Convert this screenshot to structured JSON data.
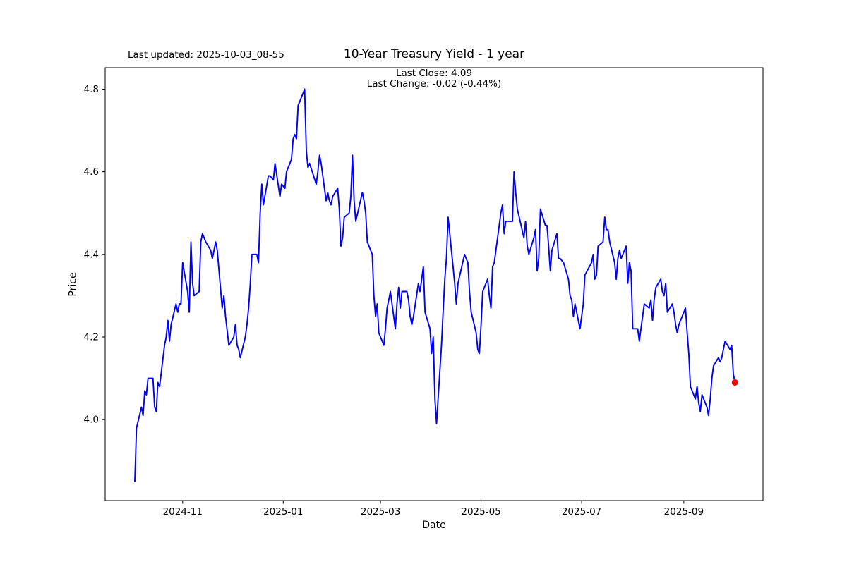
{
  "figure": {
    "last_updated": "Last updated: 2025-10-03_08-55",
    "title": "10-Year Treasury Yield - 1 year",
    "annotation": {
      "line1": "Last Close: 4.09",
      "line2": "Last Change: -0.02 (-0.44%)"
    }
  },
  "chart_data": {
    "type": "line",
    "title": "10-Year Treasury Yield - 1 year",
    "xlabel": "Date",
    "ylabel": "Price",
    "grid": false,
    "legend": "none",
    "line_color": "#0000ff",
    "marker_color": "#ff0000",
    "xlim": [
      "2024-09-15",
      "2025-10-19"
    ],
    "ylim": [
      3.804,
      4.852
    ],
    "x_ticks": [
      {
        "label": "2024-11",
        "date": "2024-11-01"
      },
      {
        "label": "2025-01",
        "date": "2025-01-01"
      },
      {
        "label": "2025-03",
        "date": "2025-03-01"
      },
      {
        "label": "2025-05",
        "date": "2025-05-01"
      },
      {
        "label": "2025-07",
        "date": "2025-07-01"
      },
      {
        "label": "2025-09",
        "date": "2025-09-01"
      }
    ],
    "y_ticks": [
      {
        "label": "4.0",
        "value": 4.0
      },
      {
        "label": "4.2",
        "value": 4.2
      },
      {
        "label": "4.4",
        "value": 4.4
      },
      {
        "label": "4.6",
        "value": 4.6
      },
      {
        "label": "4.8",
        "value": 4.8
      }
    ],
    "last_point": {
      "date": "2025-10-02",
      "value": 4.09
    },
    "series": [
      {
        "name": "10-Year Treasury Yield",
        "color": "#0000ff",
        "points": [
          [
            "2024-10-03",
            3.85
          ],
          [
            "2024-10-04",
            3.98
          ],
          [
            "2024-10-07",
            4.03
          ],
          [
            "2024-10-08",
            4.01
          ],
          [
            "2024-10-09",
            4.07
          ],
          [
            "2024-10-10",
            4.06
          ],
          [
            "2024-10-11",
            4.1
          ],
          [
            "2024-10-14",
            4.1
          ],
          [
            "2024-10-15",
            4.03
          ],
          [
            "2024-10-16",
            4.02
          ],
          [
            "2024-10-17",
            4.09
          ],
          [
            "2024-10-18",
            4.08
          ],
          [
            "2024-10-21",
            4.18
          ],
          [
            "2024-10-22",
            4.2
          ],
          [
            "2024-10-23",
            4.24
          ],
          [
            "2024-10-24",
            4.19
          ],
          [
            "2024-10-25",
            4.23
          ],
          [
            "2024-10-28",
            4.28
          ],
          [
            "2024-10-29",
            4.26
          ],
          [
            "2024-10-30",
            4.28
          ],
          [
            "2024-10-31",
            4.28
          ],
          [
            "2024-11-01",
            4.38
          ],
          [
            "2024-11-04",
            4.31
          ],
          [
            "2024-11-05",
            4.26
          ],
          [
            "2024-11-06",
            4.43
          ],
          [
            "2024-11-07",
            4.33
          ],
          [
            "2024-11-08",
            4.3
          ],
          [
            "2024-11-11",
            4.31
          ],
          [
            "2024-11-12",
            4.43
          ],
          [
            "2024-11-13",
            4.45
          ],
          [
            "2024-11-14",
            4.44
          ],
          [
            "2024-11-15",
            4.43
          ],
          [
            "2024-11-18",
            4.41
          ],
          [
            "2024-11-19",
            4.39
          ],
          [
            "2024-11-20",
            4.41
          ],
          [
            "2024-11-21",
            4.43
          ],
          [
            "2024-11-22",
            4.41
          ],
          [
            "2024-11-25",
            4.27
          ],
          [
            "2024-11-26",
            4.3
          ],
          [
            "2024-11-27",
            4.25
          ],
          [
            "2024-11-29",
            4.18
          ],
          [
            "2024-12-02",
            4.2
          ],
          [
            "2024-12-03",
            4.23
          ],
          [
            "2024-12-04",
            4.18
          ],
          [
            "2024-12-05",
            4.17
          ],
          [
            "2024-12-06",
            4.15
          ],
          [
            "2024-12-09",
            4.2
          ],
          [
            "2024-12-10",
            4.23
          ],
          [
            "2024-12-11",
            4.27
          ],
          [
            "2024-12-12",
            4.33
          ],
          [
            "2024-12-13",
            4.4
          ],
          [
            "2024-12-16",
            4.4
          ],
          [
            "2024-12-17",
            4.38
          ],
          [
            "2024-12-18",
            4.5
          ],
          [
            "2024-12-19",
            4.57
          ],
          [
            "2024-12-20",
            4.52
          ],
          [
            "2024-12-23",
            4.59
          ],
          [
            "2024-12-24",
            4.59
          ],
          [
            "2024-12-26",
            4.58
          ],
          [
            "2024-12-27",
            4.62
          ],
          [
            "2024-12-30",
            4.54
          ],
          [
            "2024-12-31",
            4.57
          ],
          [
            "2025-01-02",
            4.56
          ],
          [
            "2025-01-03",
            4.6
          ],
          [
            "2025-01-06",
            4.63
          ],
          [
            "2025-01-07",
            4.68
          ],
          [
            "2025-01-08",
            4.69
          ],
          [
            "2025-01-09",
            4.68
          ],
          [
            "2025-01-10",
            4.76
          ],
          [
            "2025-01-13",
            4.79
          ],
          [
            "2025-01-14",
            4.8
          ],
          [
            "2025-01-15",
            4.65
          ],
          [
            "2025-01-16",
            4.61
          ],
          [
            "2025-01-17",
            4.62
          ],
          [
            "2025-01-21",
            4.57
          ],
          [
            "2025-01-22",
            4.6
          ],
          [
            "2025-01-23",
            4.64
          ],
          [
            "2025-01-24",
            4.62
          ],
          [
            "2025-01-27",
            4.53
          ],
          [
            "2025-01-28",
            4.55
          ],
          [
            "2025-01-29",
            4.53
          ],
          [
            "2025-01-30",
            4.52
          ],
          [
            "2025-01-31",
            4.54
          ],
          [
            "2025-02-03",
            4.56
          ],
          [
            "2025-02-04",
            4.51
          ],
          [
            "2025-02-05",
            4.42
          ],
          [
            "2025-02-06",
            4.44
          ],
          [
            "2025-02-07",
            4.49
          ],
          [
            "2025-02-10",
            4.5
          ],
          [
            "2025-02-11",
            4.54
          ],
          [
            "2025-02-12",
            4.64
          ],
          [
            "2025-02-13",
            4.53
          ],
          [
            "2025-02-14",
            4.48
          ],
          [
            "2025-02-18",
            4.55
          ],
          [
            "2025-02-19",
            4.53
          ],
          [
            "2025-02-20",
            4.5
          ],
          [
            "2025-02-21",
            4.43
          ],
          [
            "2025-02-24",
            4.4
          ],
          [
            "2025-02-25",
            4.3
          ],
          [
            "2025-02-26",
            4.25
          ],
          [
            "2025-02-27",
            4.28
          ],
          [
            "2025-02-28",
            4.21
          ],
          [
            "2025-03-03",
            4.18
          ],
          [
            "2025-03-04",
            4.22
          ],
          [
            "2025-03-05",
            4.27
          ],
          [
            "2025-03-06",
            4.29
          ],
          [
            "2025-03-07",
            4.31
          ],
          [
            "2025-03-10",
            4.22
          ],
          [
            "2025-03-11",
            4.28
          ],
          [
            "2025-03-12",
            4.32
          ],
          [
            "2025-03-13",
            4.27
          ],
          [
            "2025-03-14",
            4.31
          ],
          [
            "2025-03-17",
            4.31
          ],
          [
            "2025-03-18",
            4.29
          ],
          [
            "2025-03-19",
            4.25
          ],
          [
            "2025-03-20",
            4.23
          ],
          [
            "2025-03-21",
            4.25
          ],
          [
            "2025-03-24",
            4.33
          ],
          [
            "2025-03-25",
            4.31
          ],
          [
            "2025-03-26",
            4.34
          ],
          [
            "2025-03-27",
            4.37
          ],
          [
            "2025-03-28",
            4.26
          ],
          [
            "2025-03-31",
            4.22
          ],
          [
            "2025-04-01",
            4.16
          ],
          [
            "2025-04-02",
            4.2
          ],
          [
            "2025-04-03",
            4.05
          ],
          [
            "2025-04-04",
            3.99
          ],
          [
            "2025-04-07",
            4.18
          ],
          [
            "2025-04-08",
            4.26
          ],
          [
            "2025-04-09",
            4.34
          ],
          [
            "2025-04-10",
            4.39
          ],
          [
            "2025-04-11",
            4.49
          ],
          [
            "2025-04-14",
            4.37
          ],
          [
            "2025-04-15",
            4.33
          ],
          [
            "2025-04-16",
            4.28
          ],
          [
            "2025-04-17",
            4.33
          ],
          [
            "2025-04-21",
            4.4
          ],
          [
            "2025-04-22",
            4.39
          ],
          [
            "2025-04-23",
            4.38
          ],
          [
            "2025-04-24",
            4.31
          ],
          [
            "2025-04-25",
            4.26
          ],
          [
            "2025-04-28",
            4.21
          ],
          [
            "2025-04-29",
            4.17
          ],
          [
            "2025-04-30",
            4.16
          ],
          [
            "2025-05-01",
            4.23
          ],
          [
            "2025-05-02",
            4.31
          ],
          [
            "2025-05-05",
            4.34
          ],
          [
            "2025-05-06",
            4.3
          ],
          [
            "2025-05-07",
            4.27
          ],
          [
            "2025-05-08",
            4.37
          ],
          [
            "2025-05-09",
            4.38
          ],
          [
            "2025-05-12",
            4.47
          ],
          [
            "2025-05-13",
            4.5
          ],
          [
            "2025-05-14",
            4.52
          ],
          [
            "2025-05-15",
            4.45
          ],
          [
            "2025-05-16",
            4.48
          ],
          [
            "2025-05-19",
            4.48
          ],
          [
            "2025-05-20",
            4.48
          ],
          [
            "2025-05-21",
            4.6
          ],
          [
            "2025-05-22",
            4.55
          ],
          [
            "2025-05-23",
            4.51
          ],
          [
            "2025-05-27",
            4.44
          ],
          [
            "2025-05-28",
            4.48
          ],
          [
            "2025-05-29",
            4.42
          ],
          [
            "2025-05-30",
            4.4
          ],
          [
            "2025-06-02",
            4.44
          ],
          [
            "2025-06-03",
            4.46
          ],
          [
            "2025-06-04",
            4.36
          ],
          [
            "2025-06-05",
            4.39
          ],
          [
            "2025-06-06",
            4.51
          ],
          [
            "2025-06-09",
            4.47
          ],
          [
            "2025-06-10",
            4.47
          ],
          [
            "2025-06-11",
            4.42
          ],
          [
            "2025-06-12",
            4.36
          ],
          [
            "2025-06-13",
            4.41
          ],
          [
            "2025-06-16",
            4.45
          ],
          [
            "2025-06-17",
            4.39
          ],
          [
            "2025-06-18",
            4.39
          ],
          [
            "2025-06-20",
            4.38
          ],
          [
            "2025-06-23",
            4.34
          ],
          [
            "2025-06-24",
            4.3
          ],
          [
            "2025-06-25",
            4.29
          ],
          [
            "2025-06-26",
            4.25
          ],
          [
            "2025-06-27",
            4.28
          ],
          [
            "2025-06-30",
            4.22
          ],
          [
            "2025-07-01",
            4.25
          ],
          [
            "2025-07-02",
            4.28
          ],
          [
            "2025-07-03",
            4.35
          ],
          [
            "2025-07-07",
            4.38
          ],
          [
            "2025-07-08",
            4.4
          ],
          [
            "2025-07-09",
            4.34
          ],
          [
            "2025-07-10",
            4.35
          ],
          [
            "2025-07-11",
            4.42
          ],
          [
            "2025-07-14",
            4.43
          ],
          [
            "2025-07-15",
            4.49
          ],
          [
            "2025-07-16",
            4.46
          ],
          [
            "2025-07-17",
            4.46
          ],
          [
            "2025-07-18",
            4.43
          ],
          [
            "2025-07-21",
            4.38
          ],
          [
            "2025-07-22",
            4.34
          ],
          [
            "2025-07-23",
            4.39
          ],
          [
            "2025-07-24",
            4.41
          ],
          [
            "2025-07-25",
            4.39
          ],
          [
            "2025-07-28",
            4.42
          ],
          [
            "2025-07-29",
            4.33
          ],
          [
            "2025-07-30",
            4.38
          ],
          [
            "2025-07-31",
            4.36
          ],
          [
            "2025-08-01",
            4.22
          ],
          [
            "2025-08-04",
            4.22
          ],
          [
            "2025-08-05",
            4.19
          ],
          [
            "2025-08-06",
            4.22
          ],
          [
            "2025-08-07",
            4.25
          ],
          [
            "2025-08-08",
            4.28
          ],
          [
            "2025-08-11",
            4.27
          ],
          [
            "2025-08-12",
            4.29
          ],
          [
            "2025-08-13",
            4.24
          ],
          [
            "2025-08-14",
            4.29
          ],
          [
            "2025-08-15",
            4.32
          ],
          [
            "2025-08-18",
            4.34
          ],
          [
            "2025-08-19",
            4.31
          ],
          [
            "2025-08-20",
            4.3
          ],
          [
            "2025-08-21",
            4.33
          ],
          [
            "2025-08-22",
            4.26
          ],
          [
            "2025-08-25",
            4.28
          ],
          [
            "2025-08-26",
            4.26
          ],
          [
            "2025-08-27",
            4.23
          ],
          [
            "2025-08-28",
            4.21
          ],
          [
            "2025-08-29",
            4.23
          ],
          [
            "2025-09-02",
            4.27
          ],
          [
            "2025-09-03",
            4.21
          ],
          [
            "2025-09-04",
            4.16
          ],
          [
            "2025-09-05",
            4.08
          ],
          [
            "2025-09-08",
            4.05
          ],
          [
            "2025-09-09",
            4.08
          ],
          [
            "2025-09-10",
            4.04
          ],
          [
            "2025-09-11",
            4.02
          ],
          [
            "2025-09-12",
            4.06
          ],
          [
            "2025-09-15",
            4.03
          ],
          [
            "2025-09-16",
            4.01
          ],
          [
            "2025-09-17",
            4.05
          ],
          [
            "2025-09-18",
            4.1
          ],
          [
            "2025-09-19",
            4.13
          ],
          [
            "2025-09-22",
            4.15
          ],
          [
            "2025-09-23",
            4.14
          ],
          [
            "2025-09-24",
            4.15
          ],
          [
            "2025-09-25",
            4.17
          ],
          [
            "2025-09-26",
            4.19
          ],
          [
            "2025-09-29",
            4.17
          ],
          [
            "2025-09-30",
            4.18
          ],
          [
            "2025-10-01",
            4.11
          ],
          [
            "2025-10-02",
            4.09
          ]
        ]
      }
    ]
  }
}
